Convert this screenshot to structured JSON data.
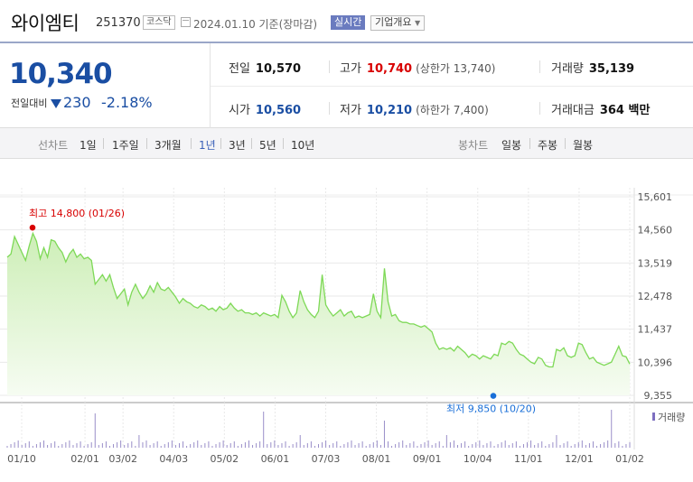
{
  "header": {
    "stock_name": "와이엠티",
    "stock_code": "251370",
    "market": "코스닥",
    "date_text": "2024.01.10 기준(장마감)",
    "realtime_label": "실시간",
    "company_label": "기업개요"
  },
  "price": {
    "current": "10,340",
    "change_label": "전일대비",
    "change_value": "230",
    "change_percent": "-2.18%",
    "direction": "down",
    "color": "#1a4ea3"
  },
  "stats": {
    "prev_label": "전일",
    "prev_value": "10,570",
    "high_label": "고가",
    "high_value": "10,740",
    "upper_limit": "(상한가 13,740)",
    "volume_label": "거래량",
    "volume_value": "35,139",
    "open_label": "시가",
    "open_value": "10,560",
    "low_label": "저가",
    "low_value": "10,210",
    "lower_limit": "(하한가 7,400)",
    "amount_label": "거래대금",
    "amount_value": "364 백만"
  },
  "period_bar": {
    "line_label": "선차트",
    "line_periods": [
      "1일",
      "1주일",
      "3개월",
      "1년",
      "3년",
      "5년",
      "10년"
    ],
    "active_period": "1년",
    "candle_label": "봉차트",
    "candle_periods": [
      "일봉",
      "주봉",
      "월봉"
    ]
  },
  "chart_data": {
    "type": "area",
    "y_ticks": [
      "15,601",
      "14,560",
      "13,519",
      "12,478",
      "11,437",
      "10,396",
      "9,355"
    ],
    "y_tick_values": [
      15601,
      14560,
      13519,
      12478,
      11437,
      10396,
      9355
    ],
    "ylim": [
      9355,
      15601
    ],
    "x_ticks": [
      "01/10",
      "02/01",
      "03/02",
      "04/03",
      "05/02",
      "06/01",
      "07/03",
      "08/01",
      "09/01",
      "10/04",
      "11/01",
      "12/01",
      "01/02"
    ],
    "high_annotation": "최고 14,800 (01/26)",
    "low_annotation": "최저 9,850 (10/20)",
    "high_value": 14800,
    "low_value": 9850,
    "volume_label": "거래량",
    "line_color": "#7ed957",
    "fill_color": "#e6f7dc",
    "prices": [
      13700,
      13800,
      14350,
      14100,
      13850,
      13600,
      14050,
      14450,
      14200,
      13650,
      14000,
      13700,
      14250,
      14200,
      14000,
      13850,
      13550,
      13800,
      13950,
      13700,
      13800,
      13650,
      13700,
      13600,
      12850,
      13000,
      13150,
      12950,
      13150,
      12750,
      12400,
      12550,
      12700,
      12200,
      12600,
      12850,
      12600,
      12400,
      12550,
      12800,
      12600,
      12900,
      12700,
      12650,
      12750,
      12600,
      12450,
      12250,
      12400,
      12300,
      12250,
      12150,
      12100,
      12200,
      12150,
      12050,
      12100,
      12000,
      12150,
      12050,
      12100,
      12250,
      12100,
      12000,
      12050,
      11950,
      11950,
      11900,
      11950,
      11850,
      11950,
      11900,
      11850,
      11900,
      11800,
      12500,
      12300,
      12000,
      11800,
      11950,
      12650,
      12300,
      12050,
      11900,
      11800,
      12000,
      13150,
      12200,
      12000,
      11850,
      11950,
      12050,
      11850,
      11950,
      12000,
      11800,
      11850,
      11800,
      11850,
      11900,
      12550,
      12000,
      11800,
      13350,
      12300,
      11850,
      11900,
      11700,
      11650,
      11650,
      11600,
      11600,
      11550,
      11500,
      11550,
      11450,
      11350,
      11000,
      10800,
      10850,
      10800,
      10850,
      10750,
      10900,
      10800,
      10700,
      10550,
      10650,
      10600,
      10500,
      10600,
      10550,
      10500,
      10650,
      10600,
      11000,
      10950,
      11050,
      11000,
      10800,
      10650,
      10600,
      10500,
      10400,
      10350,
      10550,
      10500,
      10300,
      10250,
      10250,
      10800,
      10750,
      10850,
      10600,
      10550,
      10600,
      11000,
      10950,
      10700,
      10500,
      10550,
      10400,
      10350,
      10300,
      10350,
      10400,
      10650,
      10900,
      10600,
      10570,
      10340
    ]
  }
}
